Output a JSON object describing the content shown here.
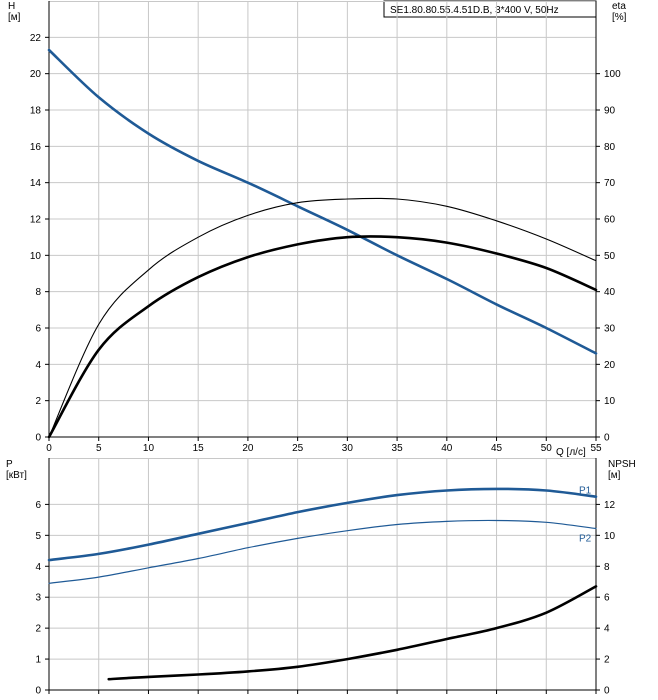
{
  "colors": {
    "background": "#ffffff",
    "grid": "#c8c8c8",
    "axis": "#000000",
    "blue_series": "#1f5a96",
    "black_series": "#000000"
  },
  "legend": {
    "text": "SE1.80.80.55.4.51D.B, 3*400 V, 50Hz"
  },
  "chart_data": [
    {
      "type": "line",
      "panel": "top",
      "xlabel": "Q [л/с]",
      "ylabel_left": "H\n[м]",
      "ylabel_right": "eta\n[%]",
      "xlim": [
        0,
        55
      ],
      "ylim_left": [
        0,
        24
      ],
      "ylim_right": [
        0,
        120
      ],
      "xticks": [
        0,
        5,
        10,
        15,
        20,
        25,
        30,
        35,
        40,
        45,
        50,
        55
      ],
      "yticks_left": [
        0,
        2,
        4,
        6,
        8,
        10,
        12,
        14,
        16,
        18,
        20,
        22
      ],
      "yticks_right": [
        0,
        10,
        20,
        30,
        40,
        50,
        60,
        70,
        80,
        90,
        100
      ],
      "grid": true,
      "series": [
        {
          "axis": "left",
          "style": "blue-thick",
          "x": [
            0,
            5,
            10,
            15,
            20,
            25,
            30,
            35,
            40,
            45,
            50,
            55
          ],
          "y": [
            21.3,
            18.7,
            16.7,
            15.2,
            14.0,
            12.7,
            11.4,
            10.0,
            8.7,
            7.3,
            6.0,
            4.6
          ]
        },
        {
          "axis": "right",
          "style": "black-thin",
          "x": [
            0,
            5,
            10,
            15,
            20,
            25,
            30,
            35,
            40,
            45,
            50,
            55
          ],
          "y": [
            0,
            31,
            46,
            55,
            61,
            64.5,
            65.5,
            65.5,
            63.5,
            59.5,
            54.5,
            48.5
          ]
        },
        {
          "axis": "right",
          "style": "black-thick",
          "x": [
            0,
            5,
            10,
            15,
            20,
            25,
            30,
            35,
            40,
            45,
            50,
            55
          ],
          "y": [
            0,
            24,
            36,
            44,
            49.5,
            53,
            55,
            55,
            53.5,
            50.5,
            46.5,
            40.5
          ]
        }
      ]
    },
    {
      "type": "line",
      "panel": "bottom",
      "ylabel_left": "P\n[кВт]",
      "ylabel_right": "NPSH\n[м]",
      "xlim": [
        0,
        55
      ],
      "ylim_left": [
        0,
        7.5
      ],
      "ylim_right": [
        0,
        15
      ],
      "yticks_left": [
        0,
        1,
        2,
        3,
        4,
        5,
        6
      ],
      "yticks_right": [
        0,
        2,
        4,
        6,
        8,
        10,
        12
      ],
      "grid": true,
      "series": [
        {
          "name": "P1",
          "axis": "left",
          "style": "blue-thick",
          "x": [
            0,
            5,
            10,
            15,
            20,
            25,
            30,
            35,
            40,
            45,
            50,
            55
          ],
          "y": [
            4.2,
            4.4,
            4.7,
            5.05,
            5.4,
            5.75,
            6.05,
            6.3,
            6.45,
            6.5,
            6.45,
            6.25
          ]
        },
        {
          "name": "P2",
          "axis": "left",
          "style": "blue-thin",
          "x": [
            0,
            5,
            10,
            15,
            20,
            25,
            30,
            35,
            40,
            45,
            50,
            55
          ],
          "y": [
            3.45,
            3.65,
            3.95,
            4.25,
            4.6,
            4.9,
            5.15,
            5.35,
            5.45,
            5.48,
            5.42,
            5.22
          ]
        },
        {
          "axis": "right",
          "style": "black-thick",
          "x": [
            6,
            10,
            15,
            20,
            25,
            30,
            35,
            40,
            45,
            50,
            55
          ],
          "y": [
            0.7,
            0.85,
            1.0,
            1.2,
            1.5,
            2.0,
            2.6,
            3.3,
            4.0,
            5.0,
            6.7
          ]
        }
      ]
    }
  ]
}
